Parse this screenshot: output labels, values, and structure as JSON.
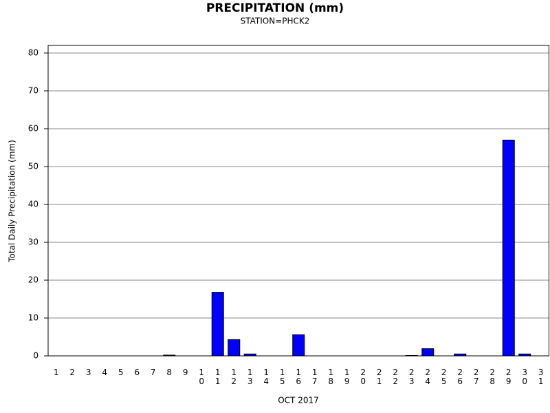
{
  "chart_data": {
    "type": "bar",
    "title": "PRECIPITATION (mm)",
    "subtitle": "STATION=PHCK2",
    "y_label": "Total Daily Precipitation (mm)",
    "x_label": "OCT 2017",
    "categories": [
      "1",
      "2",
      "3",
      "4",
      "5",
      "6",
      "7",
      "8",
      "9",
      "10",
      "11",
      "12",
      "13",
      "14",
      "15",
      "16",
      "17",
      "18",
      "19",
      "20",
      "21",
      "22",
      "23",
      "24",
      "25",
      "26",
      "27",
      "28",
      "29",
      "30",
      "31"
    ],
    "values": [
      0,
      0,
      0,
      0,
      0,
      0,
      0,
      0.2,
      0,
      0,
      16.8,
      4.3,
      0.5,
      0,
      0,
      5.6,
      0,
      0,
      0,
      0,
      0,
      0,
      0.1,
      1.9,
      0,
      0.5,
      0,
      0,
      57,
      0.5,
      0
    ],
    "color": "#0000ff",
    "ylim": [
      0,
      82
    ],
    "yticks": [
      0,
      10,
      20,
      30,
      40,
      50,
      60,
      70,
      80
    ],
    "grid": true
  }
}
